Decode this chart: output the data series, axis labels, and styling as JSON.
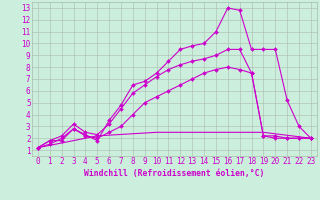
{
  "xlabel": "Windchill (Refroidissement éolien,°C)",
  "bg_color": "#cceedd",
  "line_color": "#cc00cc",
  "xlim": [
    -0.5,
    23.5
  ],
  "ylim": [
    0.5,
    13.5
  ],
  "xticks": [
    0,
    1,
    2,
    3,
    4,
    5,
    6,
    7,
    8,
    9,
    10,
    11,
    12,
    13,
    14,
    15,
    16,
    17,
    18,
    19,
    20,
    21,
    22,
    23
  ],
  "yticks": [
    1,
    2,
    3,
    4,
    5,
    6,
    7,
    8,
    9,
    10,
    11,
    12,
    13
  ],
  "series": [
    {
      "x": [
        0,
        1,
        2,
        3,
        4,
        5,
        6,
        7,
        8,
        9,
        10,
        11,
        12,
        13,
        14,
        15,
        16,
        17,
        18,
        19,
        20,
        21,
        22,
        23
      ],
      "y": [
        1.2,
        1.8,
        1.8,
        2.8,
        2.3,
        1.8,
        3.5,
        4.8,
        6.5,
        6.8,
        7.5,
        8.5,
        9.5,
        9.8,
        10.0,
        11.0,
        13.0,
        12.8,
        9.5,
        9.5,
        9.5,
        5.2,
        3.0,
        2.0
      ],
      "marker": "D"
    },
    {
      "x": [
        0,
        1,
        2,
        3,
        4,
        5,
        6,
        7,
        8,
        9,
        10,
        11,
        12,
        13,
        14,
        15,
        16,
        17,
        18,
        19,
        20,
        21,
        22,
        23
      ],
      "y": [
        1.2,
        1.8,
        2.2,
        3.2,
        2.5,
        2.3,
        3.2,
        4.5,
        5.8,
        6.5,
        7.2,
        7.8,
        8.2,
        8.5,
        8.7,
        9.0,
        9.5,
        9.5,
        7.5,
        2.2,
        2.0,
        2.0,
        2.0,
        2.0
      ],
      "marker": "D"
    },
    {
      "x": [
        0,
        1,
        2,
        3,
        4,
        5,
        6,
        7,
        8,
        9,
        10,
        11,
        12,
        13,
        14,
        15,
        16,
        17,
        18,
        19,
        20,
        21,
        22,
        23
      ],
      "y": [
        1.2,
        1.5,
        2.0,
        2.8,
        2.2,
        2.0,
        2.5,
        3.0,
        4.0,
        5.0,
        5.5,
        6.0,
        6.5,
        7.0,
        7.5,
        7.8,
        8.0,
        7.8,
        7.5,
        2.2,
        2.2,
        2.0,
        2.0,
        2.0
      ],
      "marker": "D"
    },
    {
      "x": [
        0,
        5,
        10,
        19,
        23
      ],
      "y": [
        1.2,
        2.2,
        2.5,
        2.5,
        2.0
      ],
      "marker": null
    }
  ],
  "grid_color": "#aabbaa",
  "tick_fontsize": 5.5,
  "xlabel_fontsize": 5.8
}
